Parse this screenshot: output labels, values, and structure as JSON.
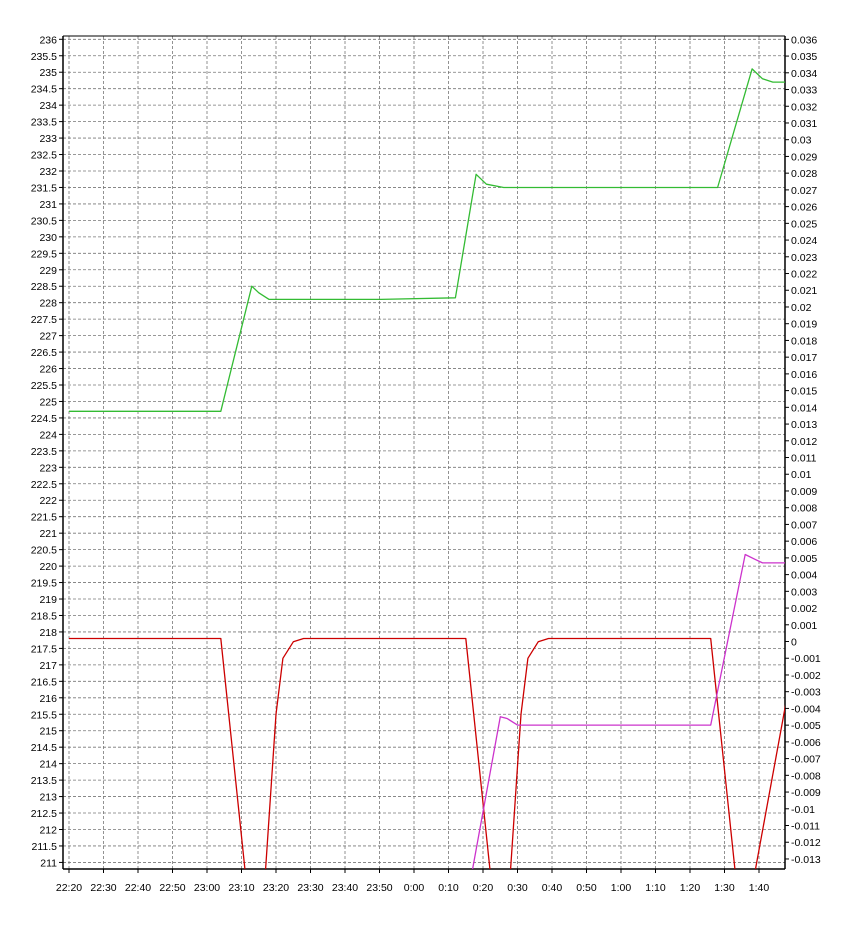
{
  "chart_data": {
    "type": "line",
    "title": "",
    "xlabel": "",
    "ylabel": "",
    "grid": true,
    "legend": "none",
    "x_tick_labels": [
      "22:20",
      "22:30",
      "22:40",
      "22:50",
      "23:00",
      "23:10",
      "23:20",
      "23:30",
      "23:40",
      "23:50",
      "0:00",
      "0:10",
      "0:20",
      "0:30",
      "0:40",
      "0:50",
      "1:00",
      "1:10",
      "1:20",
      "1:30",
      "1:40"
    ],
    "x_range_minutes_from_first_tick": [
      0,
      210
    ],
    "left_axis": {
      "range": [
        210.8,
        236.1
      ],
      "ticks": [
        211,
        211.5,
        212,
        212.5,
        213,
        213.5,
        214,
        214.5,
        215,
        215.5,
        216,
        216.5,
        217,
        217.5,
        218,
        218.5,
        219,
        219.5,
        220,
        220.5,
        221,
        221.5,
        222,
        222.5,
        223,
        223.5,
        224,
        224.5,
        225,
        225.5,
        226,
        226.5,
        227,
        227.5,
        228,
        228.5,
        229,
        229.5,
        230,
        230.5,
        231,
        231.5,
        232,
        232.5,
        233,
        233.5,
        234,
        234.5,
        235,
        235.5,
        236
      ]
    },
    "right_axis": {
      "range": [
        -0.0136,
        0.0362
      ],
      "ticks": [
        -0.013,
        -0.012,
        -0.011,
        -0.01,
        -0.009,
        -0.008,
        -0.007,
        -0.006,
        -0.005,
        -0.004,
        -0.003,
        -0.002,
        -0.001,
        0,
        0.001,
        0.002,
        0.003,
        0.004,
        0.005,
        0.006,
        0.007,
        0.008,
        0.009,
        0.01,
        0.011,
        0.012,
        0.013,
        0.014,
        0.015,
        0.016,
        0.017,
        0.018,
        0.019,
        0.02,
        0.021,
        0.022,
        0.023,
        0.024,
        0.025,
        0.026,
        0.027,
        0.028,
        0.029,
        0.03,
        0.031,
        0.032,
        0.033,
        0.034,
        0.035,
        0.036
      ]
    },
    "series": [
      {
        "axis": "left",
        "color": "#33bb33",
        "points": [
          [
            0,
            224.7
          ],
          [
            44,
            224.7
          ],
          [
            53,
            228.5
          ],
          [
            55,
            228.3
          ],
          [
            58,
            228.1
          ],
          [
            70,
            228.1
          ],
          [
            90,
            228.1
          ],
          [
            112,
            228.15
          ],
          [
            118,
            231.9
          ],
          [
            121,
            231.6
          ],
          [
            126,
            231.5
          ],
          [
            140,
            231.5
          ],
          [
            160,
            231.5
          ],
          [
            188,
            231.5
          ],
          [
            198,
            235.1
          ],
          [
            201,
            234.8
          ],
          [
            204,
            234.7
          ],
          [
            210,
            234.7
          ]
        ]
      },
      {
        "axis": "left",
        "color": "#cc0000",
        "points": [
          [
            0,
            217.8
          ],
          [
            44,
            217.8
          ],
          [
            51,
            210.8
          ]
        ]
      },
      {
        "axis": "left",
        "color": "#cc0000",
        "points": [
          [
            57,
            210.8
          ],
          [
            60,
            215.5
          ],
          [
            62,
            217.2
          ],
          [
            65,
            217.7
          ],
          [
            68,
            217.8
          ],
          [
            115,
            217.8
          ],
          [
            122,
            210.8
          ]
        ]
      },
      {
        "axis": "left",
        "color": "#cc0000",
        "points": [
          [
            128,
            210.8
          ],
          [
            131,
            215.5
          ],
          [
            133,
            217.2
          ],
          [
            136,
            217.7
          ],
          [
            139,
            217.8
          ],
          [
            186,
            217.8
          ],
          [
            193,
            210.8
          ]
        ]
      },
      {
        "axis": "left",
        "color": "#cc0000",
        "points": [
          [
            199,
            210.8
          ],
          [
            210,
            217.1
          ]
        ]
      },
      {
        "axis": "right",
        "color": "#cc33cc",
        "points": [
          [
            117,
            -0.0136
          ],
          [
            125,
            -0.0045
          ],
          [
            127,
            -0.0046
          ],
          [
            130,
            -0.005
          ],
          [
            150,
            -0.005
          ],
          [
            170,
            -0.005
          ],
          [
            186,
            -0.005
          ],
          [
            196,
            0.0052
          ],
          [
            199,
            0.0049
          ],
          [
            201,
            0.0047
          ],
          [
            210,
            0.0047
          ]
        ]
      }
    ]
  }
}
